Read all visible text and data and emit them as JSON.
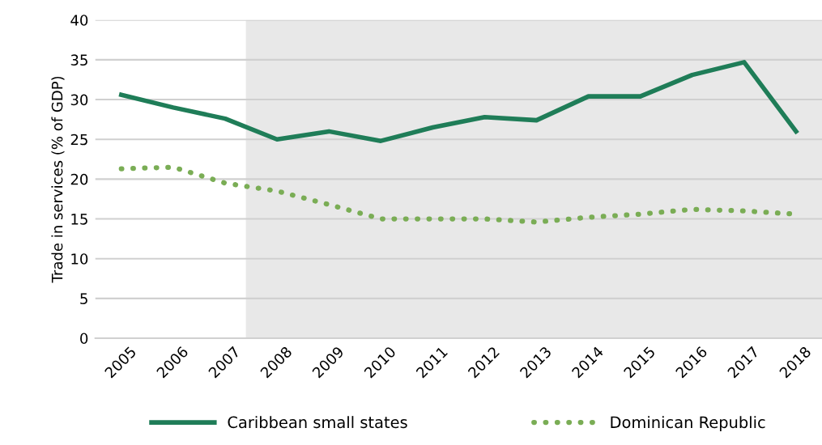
{
  "chart_data": {
    "type": "line",
    "ylabel": "Trade in services (% of GDP)",
    "x": [
      2005,
      2006,
      2007,
      2008,
      2009,
      2010,
      2011,
      2012,
      2013,
      2014,
      2015,
      2016,
      2017,
      2018
    ],
    "series": [
      {
        "name": "Caribbean small states",
        "color": "#1f7d58",
        "line_style": "solid",
        "values": [
          30.6,
          29.0,
          27.6,
          25.0,
          26.0,
          24.8,
          26.5,
          27.8,
          27.4,
          30.4,
          30.4,
          33.1,
          34.7,
          26.0
        ]
      },
      {
        "name": "Dominican Republic",
        "color": "#7aad55",
        "line_style": "dotted",
        "values": [
          21.3,
          21.5,
          19.5,
          18.5,
          16.8,
          15.0,
          15.0,
          15.0,
          14.6,
          15.2,
          15.6,
          16.2,
          16.0,
          15.6
        ]
      }
    ],
    "xlim": [
      2004.5,
      2018.5
    ],
    "xticks": [
      2005,
      2006,
      2007,
      2008,
      2009,
      2010,
      2011,
      2012,
      2013,
      2014,
      2015,
      2016,
      2017,
      2018
    ],
    "ylim": [
      0,
      40
    ],
    "yticks": [
      0,
      5,
      10,
      15,
      20,
      25,
      30,
      35,
      40
    ],
    "bands": [
      {
        "axis": "x",
        "from": 2007.4,
        "to": 2018.5,
        "color": "#e8e8e8"
      }
    ],
    "grid": "y",
    "legend": "bottom",
    "marker": "none"
  }
}
